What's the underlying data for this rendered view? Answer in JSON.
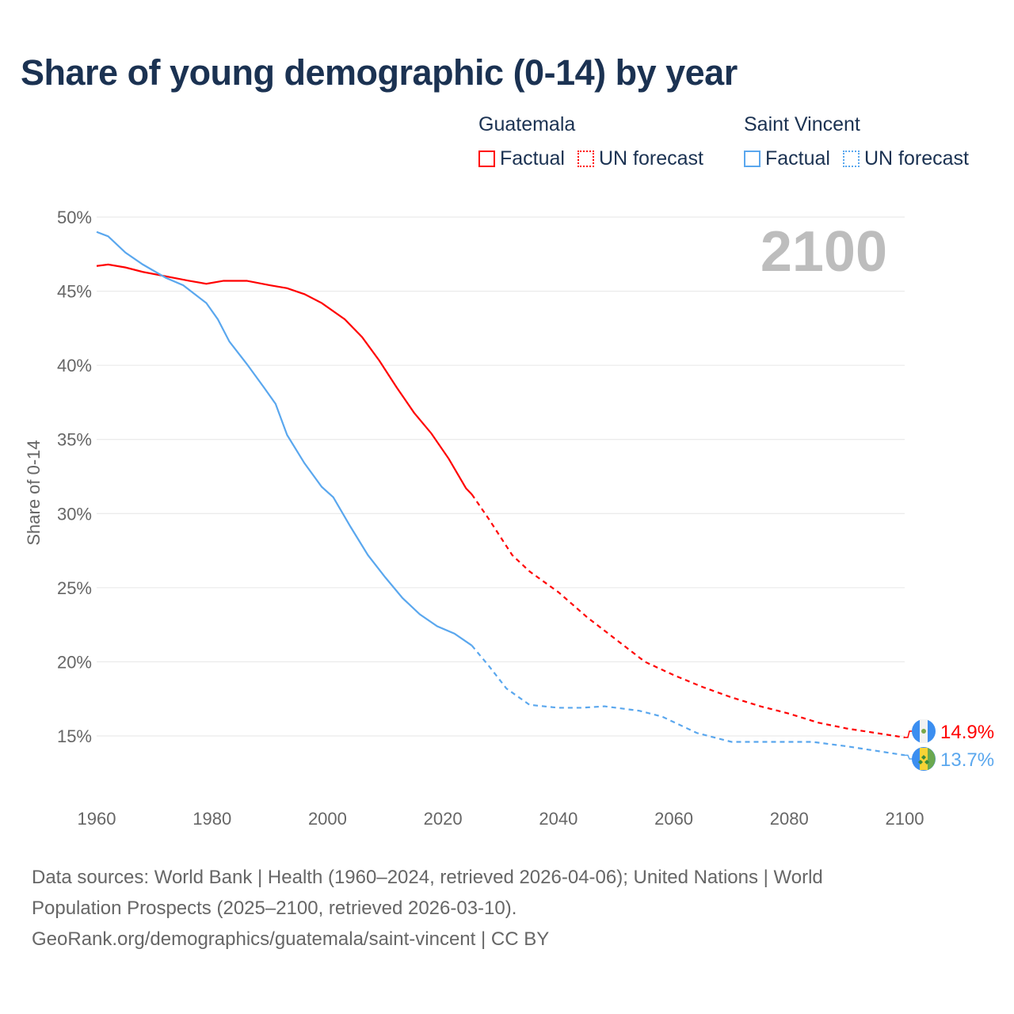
{
  "title": "Share of young demographic (0-14) by year",
  "legend": {
    "groups": [
      {
        "name": "Guatemala",
        "color": "#ff0000",
        "factual": "Factual",
        "forecast": "UN forecast"
      },
      {
        "name": "Saint Vincent",
        "color": "#5aa7ee",
        "factual": "Factual",
        "forecast": "UN forecast"
      }
    ]
  },
  "footer": {
    "line1": "Data sources: World Bank | Health (1960–2024, retrieved 2026-04-06); United Nations | World",
    "line2": "Population Prospects (2025–2100, retrieved 2026-03-10).",
    "line3": "GeoRank.org/demographics/guatemala/saint-vincent | CC BY"
  },
  "chart_data": {
    "type": "line",
    "title": "Share of young demographic (0-14) by year",
    "ylabel": "Share of 0-14",
    "xlabel": "",
    "year_label": "2100",
    "xlim": [
      1960,
      2100
    ],
    "ylim": [
      12,
      50
    ],
    "xticks": [
      "1960",
      "1980",
      "2000",
      "2020",
      "2040",
      "2060",
      "2080",
      "2100"
    ],
    "yticks": [
      "15%",
      "20%",
      "25%",
      "30%",
      "35%",
      "40%",
      "45%",
      "50%"
    ],
    "ytick_values": [
      15,
      20,
      25,
      30,
      35,
      40,
      45,
      50
    ],
    "xtick_values": [
      1960,
      1980,
      2000,
      2020,
      2040,
      2060,
      2080,
      2100
    ],
    "forecast_start": 2025,
    "series": [
      {
        "name": "Guatemala",
        "color": "#ff0000",
        "end_label": "14.9%",
        "x": [
          1960,
          1962,
          1965,
          1968,
          1972,
          1976,
          1979,
          1982,
          1986,
          1990,
          1993,
          1996,
          1999,
          2003,
          2006,
          2009,
          2012,
          2015,
          2018,
          2021,
          2024,
          2025,
          2028,
          2032,
          2035,
          2040,
          2045,
          2050,
          2055,
          2060,
          2065,
          2070,
          2075,
          2080,
          2085,
          2090,
          2095,
          2100
        ],
        "y": [
          46.7,
          46.8,
          46.6,
          46.3,
          46.0,
          45.7,
          45.5,
          45.7,
          45.7,
          45.4,
          45.2,
          44.8,
          44.2,
          43.1,
          41.9,
          40.3,
          38.5,
          36.8,
          35.4,
          33.7,
          31.7,
          31.3,
          29.6,
          27.2,
          26.1,
          24.7,
          23.0,
          21.5,
          20.0,
          19.1,
          18.3,
          17.6,
          17.0,
          16.5,
          15.9,
          15.5,
          15.2,
          14.9
        ]
      },
      {
        "name": "Saint Vincent",
        "color": "#5aa7ee",
        "end_label": "13.7%",
        "x": [
          1960,
          1962,
          1965,
          1968,
          1972,
          1975,
          1979,
          1981,
          1983,
          1986,
          1989,
          1991,
          1993,
          1996,
          1999,
          2001,
          2004,
          2007,
          2010,
          2013,
          2016,
          2019,
          2022,
          2025,
          2028,
          2031,
          2035,
          2040,
          2044,
          2048,
          2054,
          2058,
          2064,
          2070,
          2080,
          2084,
          2090,
          2095,
          2100
        ],
        "y": [
          49.0,
          48.7,
          47.6,
          46.8,
          45.9,
          45.4,
          44.2,
          43.1,
          41.6,
          40.1,
          38.5,
          37.4,
          35.3,
          33.4,
          31.8,
          31.1,
          29.1,
          27.2,
          25.7,
          24.3,
          23.2,
          22.4,
          21.9,
          21.1,
          19.7,
          18.2,
          17.1,
          16.9,
          16.9,
          17.0,
          16.7,
          16.3,
          15.2,
          14.6,
          14.6,
          14.6,
          14.3,
          14.0,
          13.7
        ]
      }
    ]
  }
}
